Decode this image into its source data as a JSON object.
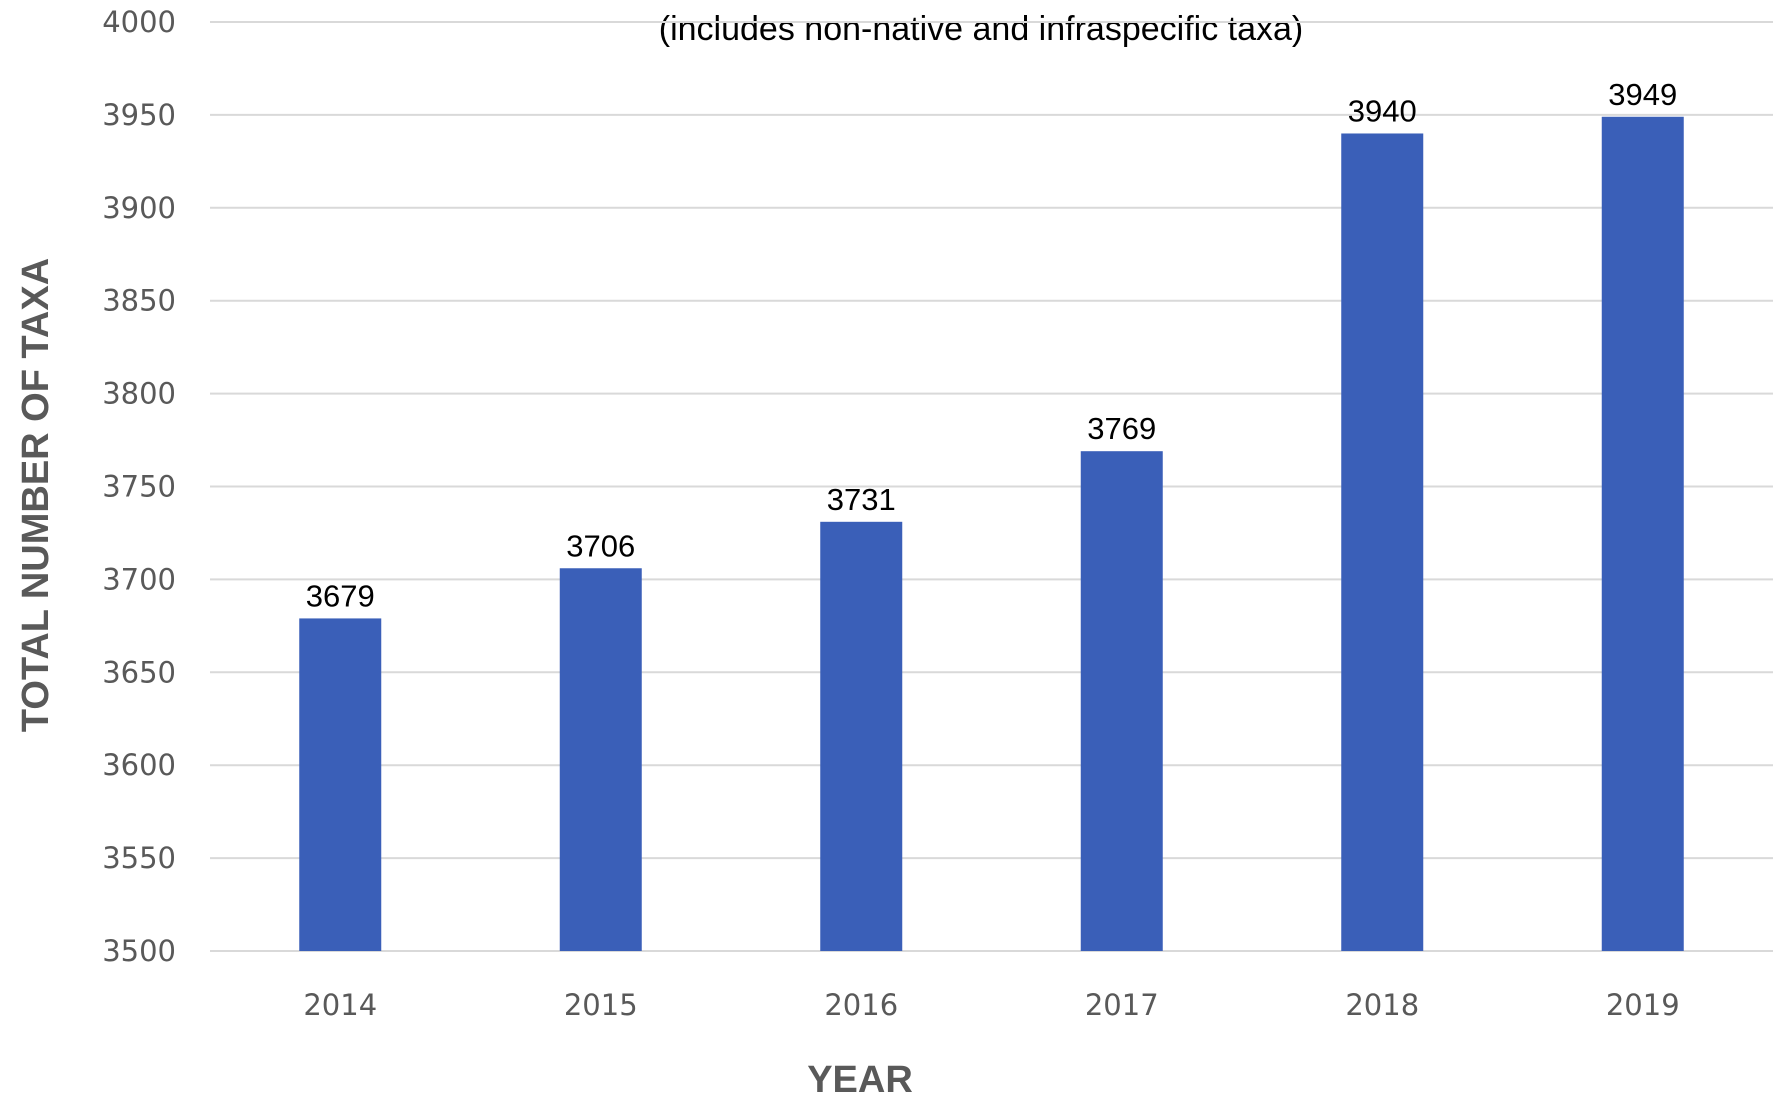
{
  "chart_data": {
    "type": "bar",
    "title": "",
    "subtitle": "(includes non-native and infraspecific taxa)",
    "xlabel": "YEAR",
    "ylabel": "TOTAL NUMBER OF TAXA",
    "categories": [
      "2014",
      "2015",
      "2016",
      "2017",
      "2018",
      "2019"
    ],
    "values": [
      3679,
      3706,
      3731,
      3769,
      3940,
      3949
    ],
    "data_labels": [
      "3679",
      "3706",
      "3731",
      "3769",
      "3940",
      "3949"
    ],
    "ylim": [
      3500,
      4000
    ],
    "y_ticks": [
      3500,
      3550,
      3600,
      3650,
      3700,
      3750,
      3800,
      3850,
      3900,
      3950,
      4000
    ],
    "grid": true,
    "legend": "none",
    "colors": {
      "bar": "#3a5fb8",
      "grid": "#d9d9d9",
      "tick_text": "#595959"
    }
  }
}
